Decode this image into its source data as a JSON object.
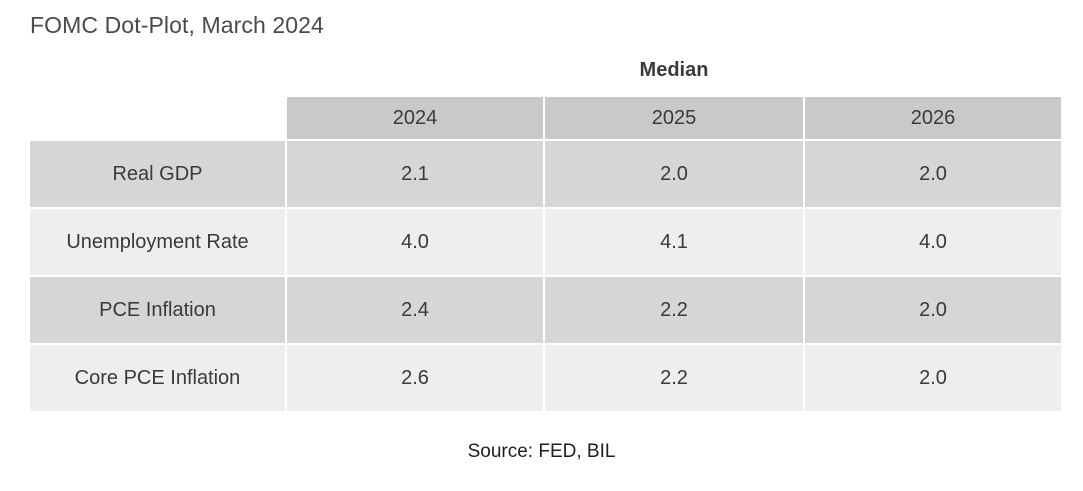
{
  "title": "FOMC Dot-Plot, March 2024",
  "group_header": "Median",
  "columns": [
    "2024",
    "2025",
    "2026"
  ],
  "rows": [
    {
      "label": "Real GDP",
      "values": [
        "2.1",
        "2.0",
        "2.0"
      ]
    },
    {
      "label": "Unemployment Rate",
      "values": [
        "4.0",
        "4.1",
        "4.0"
      ]
    },
    {
      "label": "PCE Inflation",
      "values": [
        "2.4",
        "2.2",
        "2.0"
      ]
    },
    {
      "label": "Core PCE Inflation",
      "values": [
        "2.6",
        "2.2",
        "2.0"
      ]
    }
  ],
  "source": "Source: FED, BIL",
  "colors": {
    "header_bg": "#c9c9c9",
    "row_dark_bg": "#d6d6d6",
    "row_light_bg": "#eeeeee"
  }
}
